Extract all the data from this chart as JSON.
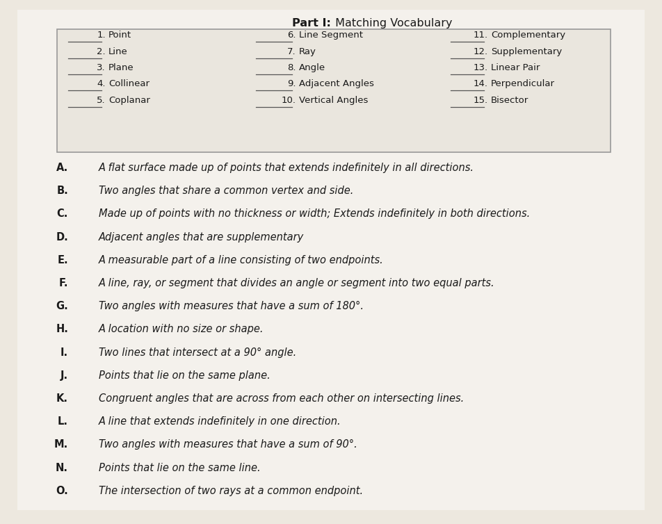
{
  "title_part": "Part I:",
  "title_main": " Matching Vocabulary",
  "background_color": "#ede8df",
  "paper_color": "#f4f1ec",
  "box_facecolor": "#eae6de",
  "box_edgecolor": "#999999",
  "table_items_col1": [
    {
      "num": "1.",
      "label": "Point"
    },
    {
      "num": "2.",
      "label": "Line"
    },
    {
      "num": "3.",
      "label": "Plane"
    },
    {
      "num": "4.",
      "label": "Collinear"
    },
    {
      "num": "5.",
      "label": "Coplanar"
    }
  ],
  "table_items_col2": [
    {
      "num": "6.",
      "label": "Line Segment"
    },
    {
      "num": "7.",
      "label": "Ray"
    },
    {
      "num": "8.",
      "label": "Angle"
    },
    {
      "num": "9.",
      "label": "Adjacent Angles"
    },
    {
      "num": "10.",
      "label": "Vertical Angles"
    }
  ],
  "table_items_col3": [
    {
      "num": "11.",
      "label": "Complementary"
    },
    {
      "num": "12.",
      "label": "Supplementary"
    },
    {
      "num": "13.",
      "label": "Linear Pair"
    },
    {
      "num": "14.",
      "label": "Perpendicular"
    },
    {
      "num": "15.",
      "label": "Bisector"
    }
  ],
  "definitions": [
    {
      "letter": "A.",
      "text": "A flat surface made up of points that extends indefinitely in all directions."
    },
    {
      "letter": "B.",
      "text": "Two angles that share a common vertex and side."
    },
    {
      "letter": "C.",
      "text": "Made up of points with no thickness or width; Extends indefinitely in both directions."
    },
    {
      "letter": "D.",
      "text": "Adjacent angles that are supplementary"
    },
    {
      "letter": "E.",
      "text": "A measurable part of a line consisting of two endpoints."
    },
    {
      "letter": "F.",
      "text": "A line, ray, or segment that divides an angle or segment into two equal parts."
    },
    {
      "letter": "G.",
      "text": "Two angles with measures that have a sum of 180°."
    },
    {
      "letter": "H.",
      "text": "A location with no size or shape."
    },
    {
      "letter": "I.",
      "text": "Two lines that intersect at a 90° angle."
    },
    {
      "letter": "J.",
      "text": "Points that lie on the same plane."
    },
    {
      "letter": "K.",
      "text": "Congruent angles that are across from each other on intersecting lines."
    },
    {
      "letter": "L.",
      "text": "A line that extends indefinitely in one direction."
    },
    {
      "letter": "M.",
      "text": "Two angles with measures that have a sum of 90°."
    },
    {
      "letter": "N.",
      "text": "Points that lie on the same line."
    },
    {
      "letter": "O.",
      "text": "The intersection of two rays at a common endpoint."
    }
  ],
  "title_fontsize": 11.5,
  "table_fontsize": 9.5,
  "def_letter_fontsize": 10.5,
  "def_text_fontsize": 10.5,
  "line_color": "#555555",
  "text_color": "#1a1a1a"
}
